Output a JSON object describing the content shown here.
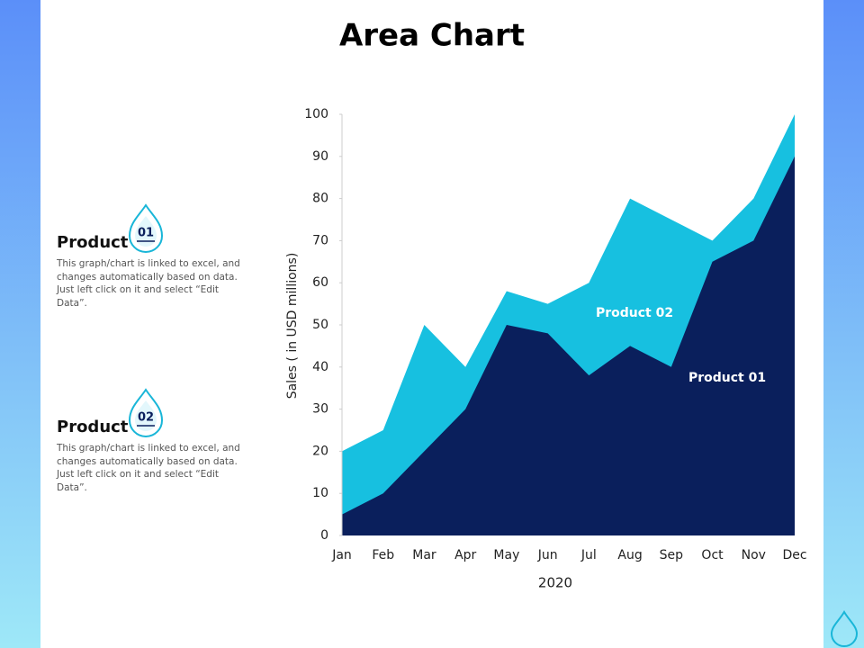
{
  "chart_data": {
    "type": "area",
    "title": "Area Chart",
    "categories": [
      "Jan",
      "Feb",
      "Mar",
      "Apr",
      "May",
      "Jun",
      "Jul",
      "Aug",
      "Sep",
      "Oct",
      "Nov",
      "Dec"
    ],
    "series": [
      {
        "name": "Product 02",
        "color": "#17c0e0",
        "values": [
          20,
          25,
          50,
          40,
          58,
          55,
          60,
          80,
          75,
          70,
          80,
          100
        ]
      },
      {
        "name": "Product 01",
        "color": "#0a1f5c",
        "values": [
          5,
          10,
          20,
          30,
          50,
          48,
          38,
          45,
          40,
          65,
          70,
          90
        ]
      }
    ],
    "ylim": [
      0,
      100
    ],
    "yticks": [
      0,
      10,
      20,
      30,
      40,
      50,
      60,
      70,
      80,
      90,
      100
    ],
    "y_label": "Sales  ( in USD millions)",
    "x_label": "2020"
  },
  "side": [
    {
      "title": "Product",
      "number": "01",
      "text": "This graph/chart is linked to excel, and changes automatically based on data. Just left click on it and select “Edit Data”."
    },
    {
      "title": "Product",
      "number": "02",
      "text": "This graph/chart is linked to excel, and changes automatically based on data. Just left click on it and select “Edit Data”."
    }
  ]
}
